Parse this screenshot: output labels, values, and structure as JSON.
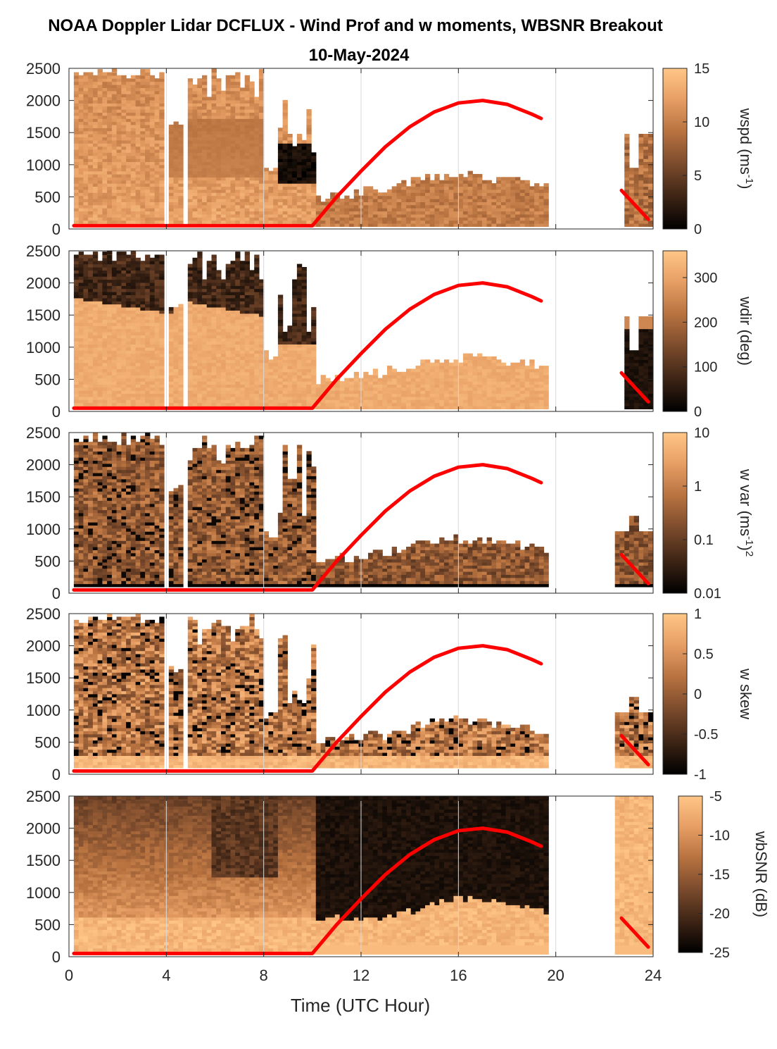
{
  "figure": {
    "title_line1": "NOAA Doppler Lidar DCFLUX - Wind Prof and w moments, WBSNR Breakout",
    "title_line2": "10-May-2024",
    "xlabel": "Time (UTC Hour)",
    "xticks": [
      "0",
      "4",
      "8",
      "12",
      "16",
      "20",
      "24"
    ],
    "yticks": [
      "0",
      "500",
      "1000",
      "1500",
      "2000",
      "2500"
    ],
    "colormap": [
      "#000000",
      "#3d2415",
      "#7a4a2c",
      "#b6713f",
      "#e69d63",
      "#ffc687"
    ],
    "line_color": "#ff0000"
  },
  "chart_data": [
    {
      "type": "heatmap",
      "ylabel": "",
      "colorbar_label": "wspd (ms-1)",
      "colorbar_ticks": [
        "0",
        "5",
        "10",
        "15"
      ],
      "xlim": [
        0,
        24
      ],
      "ylim": [
        0,
        2500
      ],
      "clim": [
        0,
        15
      ],
      "grid": true
    },
    {
      "type": "heatmap",
      "colorbar_label": "wdir (deg)",
      "colorbar_ticks": [
        "0",
        "100",
        "200",
        "300"
      ],
      "xlim": [
        0,
        24
      ],
      "ylim": [
        0,
        2500
      ],
      "clim": [
        0,
        360
      ],
      "grid": true
    },
    {
      "type": "heatmap",
      "colorbar_label": "w var (ms-1)2",
      "colorbar_ticks": [
        "0.01",
        "0.1",
        "1",
        "10"
      ],
      "colorbar_scale": "log",
      "xlim": [
        0,
        24
      ],
      "ylim": [
        0,
        2500
      ],
      "clim": [
        0.01,
        10
      ],
      "grid": true
    },
    {
      "type": "heatmap",
      "colorbar_label": "w skew",
      "colorbar_ticks": [
        "-1",
        "-0.5",
        "0",
        "0.5",
        "1"
      ],
      "xlim": [
        0,
        24
      ],
      "ylim": [
        0,
        2500
      ],
      "clim": [
        -1,
        1
      ],
      "grid": true
    },
    {
      "type": "heatmap",
      "colorbar_label": "wbSNR (dB)",
      "colorbar_ticks": [
        "-25",
        "-20",
        "-15",
        "-10",
        "-5"
      ],
      "xlim": [
        0,
        24
      ],
      "ylim": [
        0,
        2500
      ],
      "clim": [
        -25,
        -5
      ],
      "grid": true
    }
  ],
  "overlay_line": {
    "type": "line",
    "x": [
      0.2,
      10,
      11,
      12,
      13,
      14,
      15,
      16,
      17,
      18,
      19,
      19.4
    ],
    "y": [
      50,
      50,
      500,
      900,
      1280,
      1590,
      1820,
      1960,
      2000,
      1940,
      1790,
      1720
    ],
    "x2": [
      22.7,
      23.8
    ],
    "y2": [
      600,
      150
    ]
  }
}
